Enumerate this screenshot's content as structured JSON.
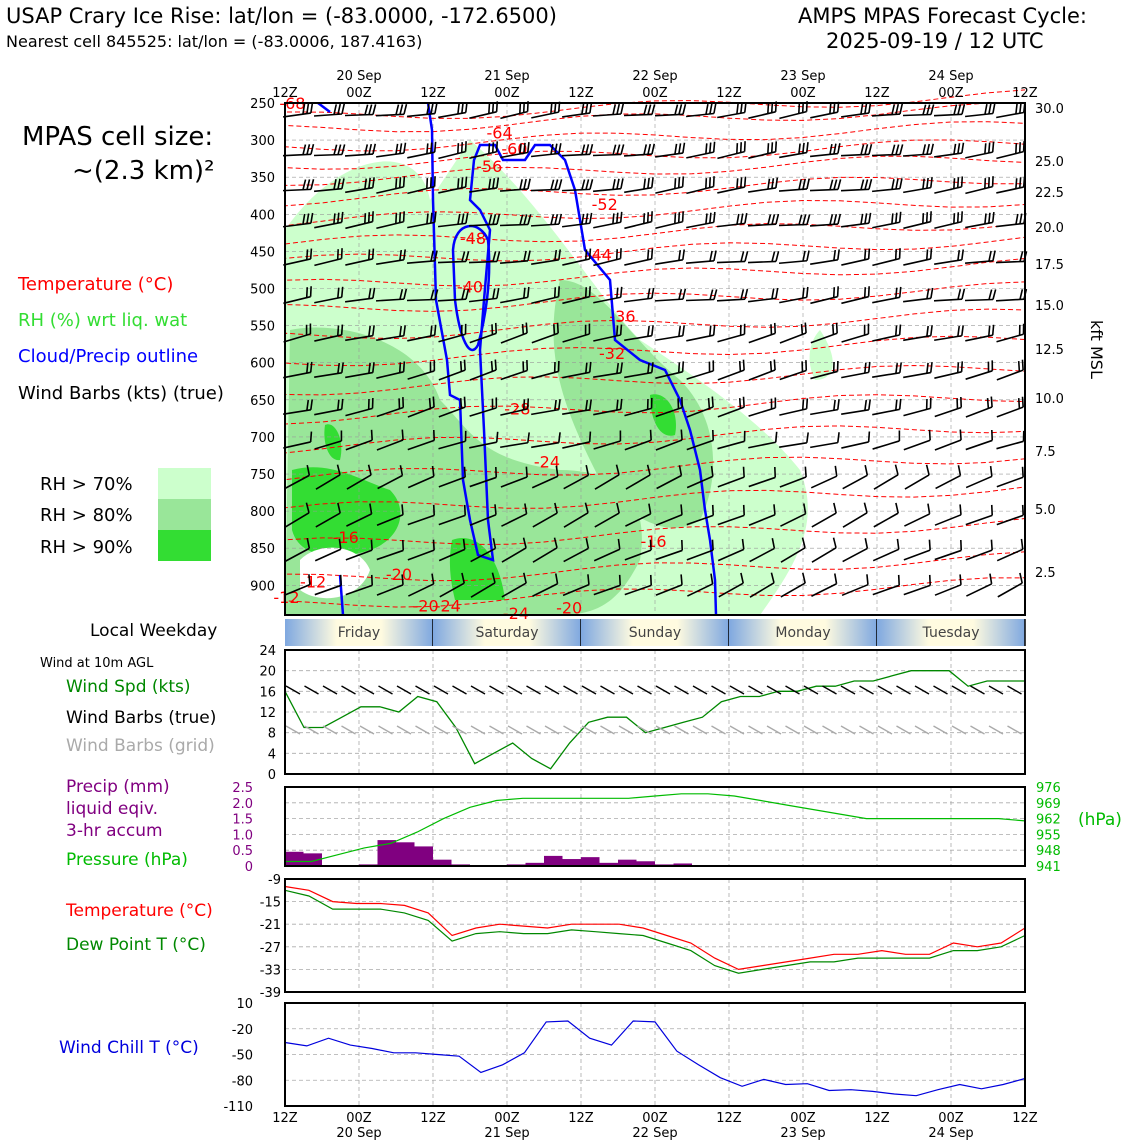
{
  "header": {
    "left_line1": "USAP Crary Ice Rise: lat/lon = (-83.0000, -172.6500)",
    "left_line2": "Nearest cell 845525: lat/lon = (-83.0006, 187.4163)",
    "right_line1": "AMPS MPAS Forecast Cycle:",
    "right_line2": "2025-09-19 / 12 UTC"
  },
  "cell_size": {
    "line1": "MPAS cell size:",
    "line2": "~(2.3 km)²"
  },
  "legend": {
    "temperature": "Temperature (°C)",
    "rh": "RH (%) wrt liq. wat",
    "cloud": "Cloud/Precip outline",
    "wind": "Wind Barbs (kts) (true)",
    "rh70": "RH > 70%",
    "rh80": "RH > 80%",
    "rh90": "RH > 90%",
    "local_weekday": "Local Weekday",
    "wind10m": "Wind at 10m AGL",
    "wind_spd": "Wind Spd (kts)",
    "wind_barbs_true": "Wind Barbs (true)",
    "wind_barbs_grid": "Wind Barbs (grid)",
    "precip1": "Precip (mm)",
    "precip2": "liquid eqiv.",
    "precip3": "3-hr accum",
    "pressure": "Pressure (hPa)",
    "pressure_unit": "(hPa)",
    "temp2": "Temperature (°C)",
    "dew": "Dew Point T (°C)",
    "windchill": "Wind Chill T (°C)",
    "kft": "kft MSL"
  },
  "colors": {
    "temp": "#ff0000",
    "rh70": "#ccffcc",
    "rh80": "#99e699",
    "rh90": "#33dd33",
    "cloud": "#0000ff",
    "wind_spd": "#008800",
    "pressure": "#00bb00",
    "precip": "#800080",
    "windchill": "#0000dd",
    "grid_barb": "#aaaaaa"
  },
  "chart_data": {
    "type": "meteogram",
    "time_ticks": [
      "12Z",
      "00Z",
      "12Z",
      "00Z",
      "12Z",
      "00Z",
      "12Z",
      "00Z",
      "12Z",
      "00Z",
      "12Z"
    ],
    "date_ticks": [
      "20 Sep",
      "21 Sep",
      "22 Sep",
      "23 Sep",
      "24 Sep"
    ],
    "weekdays": [
      "Friday",
      "Saturday",
      "Sunday",
      "Monday",
      "Tuesday"
    ],
    "pressure_levels": [
      "250",
      "300",
      "350",
      "400",
      "450",
      "500",
      "550",
      "600",
      "650",
      "700",
      "750",
      "800",
      "850",
      "900"
    ],
    "kft_ticks": [
      "30.0",
      "25.0",
      "22.5",
      "20.0",
      "17.5",
      "15.0",
      "12.5",
      "10.0",
      "7.5",
      "5.0",
      "2.5"
    ],
    "temp_contour_labels": [
      {
        "t": 0.05,
        "p": 250,
        "label": "-68"
      },
      {
        "t": 1.45,
        "p": 290,
        "label": "-64"
      },
      {
        "t": 1.55,
        "p": 311,
        "label": "-60"
      },
      {
        "t": 1.38,
        "p": 335,
        "label": "-56"
      },
      {
        "t": 1.27,
        "p": 432,
        "label": "-48"
      },
      {
        "t": 1.25,
        "p": 497,
        "label": "-40"
      },
      {
        "t": 2.16,
        "p": 386,
        "label": "-52"
      },
      {
        "t": 2.12,
        "p": 454,
        "label": "-44"
      },
      {
        "t": 2.28,
        "p": 537,
        "label": "-36"
      },
      {
        "t": 2.21,
        "p": 587,
        "label": "-32"
      },
      {
        "t": 1.57,
        "p": 662,
        "label": "-28"
      },
      {
        "t": 1.77,
        "p": 733,
        "label": "-24"
      },
      {
        "t": 0.41,
        "p": 835,
        "label": "-16"
      },
      {
        "t": 0.19,
        "p": 895,
        "label": "-12"
      },
      {
        "t": 0.01,
        "p": 916,
        "label": "-12"
      },
      {
        "t": 0.77,
        "p": 885,
        "label": "-20"
      },
      {
        "t": 0.95,
        "p": 927,
        "label": "-20"
      },
      {
        "t": 1.1,
        "p": 927,
        "label": "-24"
      },
      {
        "t": 1.56,
        "p": 937,
        "label": "-24"
      },
      {
        "t": 1.92,
        "p": 930,
        "label": "-20"
      },
      {
        "t": 2.49,
        "p": 840,
        "label": "-16"
      }
    ],
    "surface_wind_speed": [
      16,
      9,
      9,
      11,
      13,
      13,
      12,
      15,
      14,
      9,
      2,
      4,
      6,
      3,
      1,
      6,
      10,
      11,
      11,
      8,
      9,
      10,
      11,
      14,
      15,
      15,
      16,
      16,
      17,
      17,
      18,
      18,
      19,
      20,
      20,
      20,
      17,
      18,
      18,
      18
    ],
    "pressure_hpa": [
      943,
      943,
      946,
      949,
      951,
      956,
      962,
      967,
      970,
      971,
      971,
      971,
      971,
      971,
      972,
      973,
      973,
      972,
      970,
      968,
      966,
      964,
      962,
      962,
      962,
      962,
      962,
      962,
      961
    ],
    "pressure_axis": [
      941,
      948,
      955,
      962,
      969,
      976
    ],
    "precip_axis": [
      "0",
      "0.5",
      "1.0",
      "1.5",
      "2.0",
      "2.5"
    ],
    "precip_mm": [
      0.45,
      0.4,
      0,
      0,
      0.05,
      0.82,
      0.75,
      0.62,
      0.2,
      0.05,
      0,
      0,
      0.05,
      0.1,
      0.32,
      0.22,
      0.28,
      0.1,
      0.2,
      0.15,
      0.05,
      0.08
    ],
    "temperature_c": [
      -11,
      -12,
      -15,
      -15.5,
      -15.5,
      -16,
      -18,
      -24,
      -22,
      -21,
      -21.5,
      -22,
      -21,
      -21,
      -21,
      -22,
      -24,
      -26,
      -30,
      -33,
      -32,
      -31,
      -30,
      -29,
      -29,
      -28,
      -29,
      -29,
      -26,
      -27,
      -26,
      -22
    ],
    "dewpoint_c": [
      -12,
      -13.5,
      -17,
      -17,
      -17,
      -18,
      -20,
      -25.5,
      -23.5,
      -23,
      -23.5,
      -23.5,
      -22.5,
      -23,
      -23.5,
      -24,
      -26,
      -28,
      -32,
      -34,
      -33,
      -32,
      -31,
      -31,
      -30,
      -30,
      -30,
      -30,
      -28,
      -28,
      -27,
      -24
    ],
    "temp_axis": [
      "-9",
      "-15",
      "-21",
      "-27",
      "-33",
      "-39"
    ],
    "wind_chill_c": [
      -36,
      -40,
      -31,
      -39,
      -43,
      -48,
      -48,
      -50,
      -52,
      -71,
      -62,
      -48,
      -12,
      -11,
      -31,
      -39,
      -11,
      -12,
      -46,
      -62,
      -77,
      -87,
      -79,
      -85,
      -84,
      -92,
      -91,
      -93,
      -96,
      -98,
      -91,
      -85,
      -90,
      -85,
      -78
    ],
    "wind_chill_axis": [
      "10",
      "-20",
      "-50",
      "-80",
      "-110"
    ],
    "surface_spd_axis": [
      "0",
      "4",
      "8",
      "12",
      "16",
      "20",
      "24"
    ]
  }
}
